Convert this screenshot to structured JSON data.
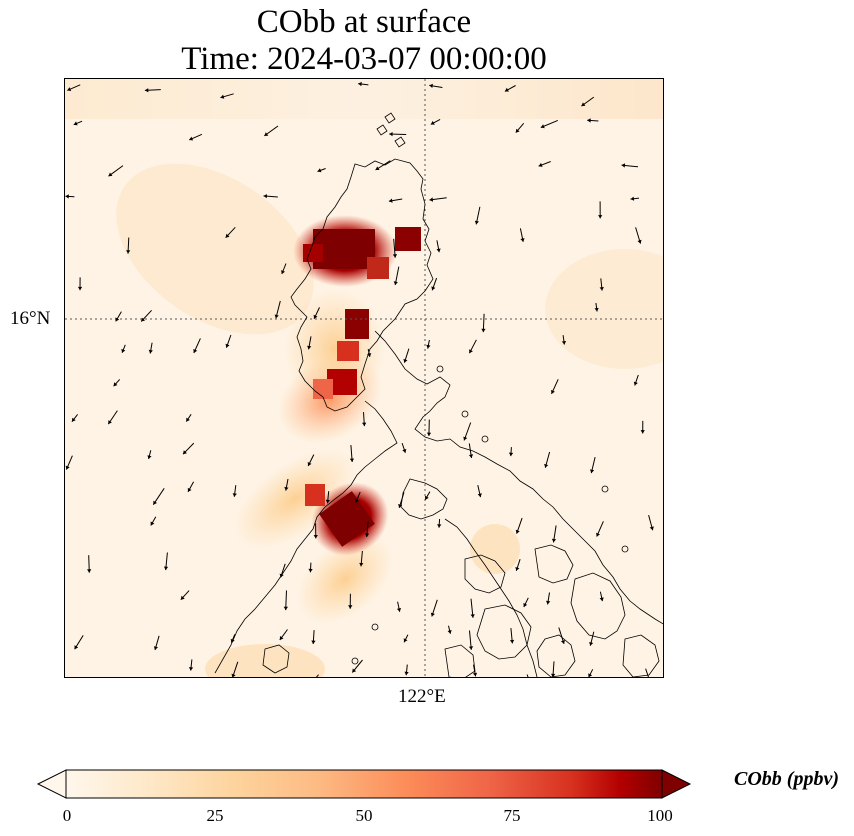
{
  "title": {
    "line1": "CObb at surface",
    "line2": "Time: 2024-03-07 00:00:00"
  },
  "map": {
    "field": "CObb",
    "lat_tick_label": "16°N",
    "lon_tick_label": "122°E",
    "gridlines": true,
    "coastlines": true,
    "wind_vectors": true
  },
  "colorbar": {
    "label": "CObb (ppbv)",
    "colormap": "OrRd",
    "min": 0,
    "max": 100,
    "extend": "both",
    "ticks": [
      "0",
      "25",
      "50",
      "75",
      "100"
    ]
  },
  "colors": {
    "background_low": "#fff7ec",
    "hotspot": "#7f0000",
    "coastline": "#000000"
  }
}
